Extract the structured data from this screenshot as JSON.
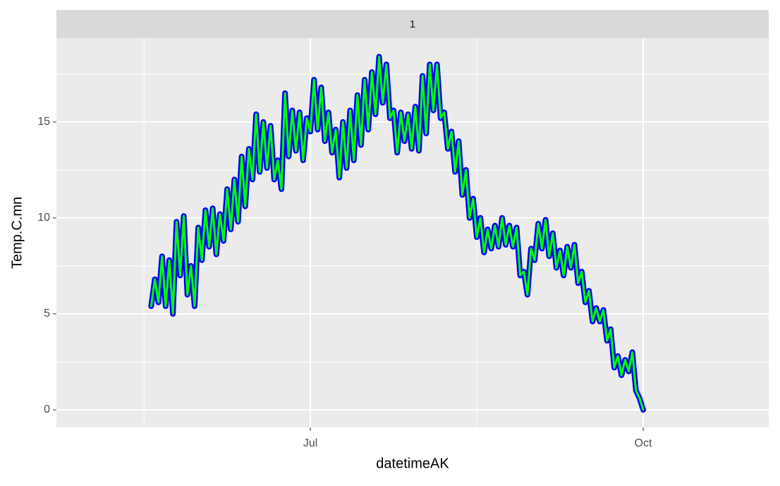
{
  "chart_data": {
    "type": "line",
    "facet_label": "1",
    "x_label": "datetimeAK",
    "y_label": "Temp.C.mn",
    "x": [
      138,
      139,
      140,
      141,
      142,
      143,
      144,
      145,
      146,
      147,
      148,
      149,
      150,
      151,
      152,
      153,
      154,
      155,
      156,
      157,
      158,
      159,
      160,
      161,
      162,
      163,
      164,
      165,
      166,
      167,
      168,
      169,
      170,
      171,
      172,
      173,
      174,
      175,
      176,
      177,
      178,
      179,
      180,
      181,
      182,
      183,
      184,
      185,
      186,
      187,
      188,
      189,
      190,
      191,
      192,
      193,
      194,
      195,
      196,
      197,
      198,
      199,
      200,
      201,
      202,
      203,
      204,
      205,
      206,
      207,
      208,
      209,
      210,
      211,
      212,
      213,
      214,
      215,
      216,
      217,
      218,
      219,
      220,
      221,
      222,
      223,
      224,
      225,
      226,
      227,
      228,
      229,
      230,
      231,
      232,
      233,
      234,
      235,
      236,
      237,
      238,
      239,
      240,
      241,
      242,
      243,
      244,
      245,
      246,
      247,
      248,
      249,
      250,
      251,
      252,
      253,
      254,
      255,
      256,
      257,
      258,
      259,
      260,
      261,
      262,
      263,
      264,
      265,
      266,
      267,
      268,
      269,
      270,
      271,
      272,
      273,
      274
    ],
    "values": [
      5.4,
      6.8,
      5.6,
      8.0,
      5.4,
      7.8,
      5.0,
      9.8,
      7.0,
      10.1,
      6.0,
      7.5,
      5.4,
      9.5,
      7.8,
      10.4,
      8.5,
      10.5,
      8.1,
      10.2,
      8.8,
      11.5,
      9.4,
      12.0,
      9.8,
      13.2,
      10.6,
      13.6,
      12.0,
      15.4,
      12.4,
      15.0,
      12.6,
      14.8,
      12.0,
      13.0,
      11.5,
      16.5,
      13.2,
      15.6,
      13.5,
      15.5,
      13.0,
      15.2,
      14.5,
      17.2,
      14.6,
      16.8,
      14.0,
      15.5,
      13.4,
      14.6,
      12.1,
      15.0,
      12.6,
      15.6,
      13.0,
      16.4,
      13.8,
      17.2,
      14.6,
      17.6,
      15.4,
      18.4,
      16.0,
      18.0,
      15.2,
      15.6,
      13.4,
      15.5,
      14.0,
      15.4,
      13.6,
      15.8,
      13.5,
      17.4,
      14.4,
      18.0,
      15.6,
      18.0,
      15.2,
      15.5,
      13.6,
      14.5,
      12.4,
      14.0,
      11.2,
      12.5,
      10.0,
      11.0,
      9.0,
      10.0,
      8.2,
      9.4,
      8.4,
      9.6,
      8.5,
      10.0,
      8.6,
      9.6,
      8.5,
      9.5,
      7.0,
      7.2,
      6.0,
      8.4,
      7.8,
      9.7,
      8.4,
      9.9,
      8.0,
      9.2,
      7.4,
      8.3,
      7.0,
      8.5,
      7.4,
      8.6,
      6.6,
      7.2,
      5.6,
      6.2,
      4.6,
      5.3,
      4.6,
      5.2,
      3.6,
      4.2,
      2.2,
      2.8,
      1.8,
      2.6,
      2.0,
      3.0,
      1.0,
      0.6,
      0.0
    ],
    "color": "#00ff00",
    "outline_color": "#0000ff",
    "xlim": [
      111.8,
      308.7
    ],
    "xticks": [
      {
        "value": 182,
        "label": "Jul"
      },
      {
        "value": 274,
        "label": "Oct"
      }
    ],
    "ylim": [
      -0.92,
      19.37
    ],
    "yticks": [
      0,
      5,
      10,
      15
    ],
    "grid": true
  }
}
